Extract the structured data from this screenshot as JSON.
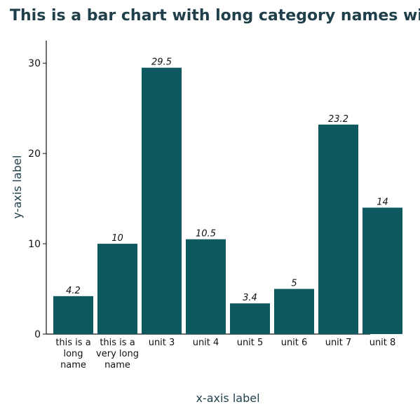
{
  "chart_data": {
    "type": "bar",
    "title": "This is a bar chart with long category names with spaces",
    "xlabel": "x-axis label",
    "ylabel": "y-axis label",
    "categories": [
      "this is a long name",
      "this is a very long name",
      "unit 3",
      "unit 4",
      "unit 5",
      "unit 6",
      "unit 7",
      "unit 8"
    ],
    "values": [
      4.2,
      10,
      29.5,
      10.5,
      3.4,
      5,
      23.2,
      14
    ],
    "data_labels": [
      "4.2",
      "10",
      "29.5",
      "10.5",
      "3.4",
      "5",
      "23.2",
      "14"
    ],
    "yticks": [
      0,
      10,
      20,
      30
    ],
    "ylim": [
      0,
      32.5
    ],
    "grid": false,
    "legend": "none",
    "bar_color": "#0e5960"
  }
}
